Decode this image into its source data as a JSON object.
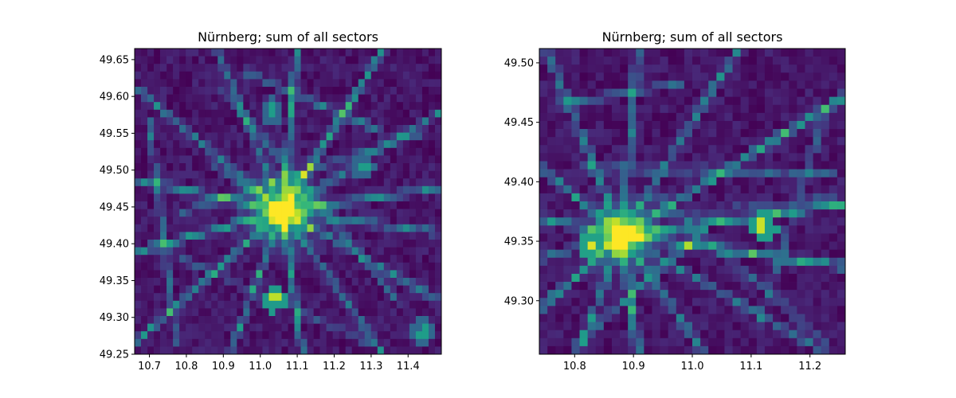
{
  "chart_data": [
    {
      "type": "heatmap",
      "title": "Nürnberg; sum of all sectors",
      "xlabel": "",
      "ylabel": "",
      "xlim": [
        10.66,
        11.49
      ],
      "ylim": [
        49.25,
        49.665
      ],
      "x_ticks": [
        "10.7",
        "10.8",
        "10.9",
        "11.0",
        "11.1",
        "11.2",
        "11.3",
        "11.4"
      ],
      "y_ticks": [
        "49.25",
        "49.30",
        "49.35",
        "49.40",
        "49.45",
        "49.50",
        "49.55",
        "49.60",
        "49.65"
      ],
      "colormap": "viridis",
      "grid": false,
      "cells": [
        48,
        40
      ],
      "hotspots": [
        {
          "x": 11.06,
          "y": 49.445,
          "value": 1.0
        },
        {
          "x": 11.04,
          "y": 49.455,
          "value": 0.92
        },
        {
          "x": 11.08,
          "y": 49.47,
          "value": 0.85
        },
        {
          "x": 11.04,
          "y": 49.325,
          "value": 0.9
        },
        {
          "x": 11.03,
          "y": 49.58,
          "value": 0.55
        },
        {
          "x": 11.28,
          "y": 49.505,
          "value": 0.55
        },
        {
          "x": 11.44,
          "y": 49.28,
          "value": 0.55
        }
      ]
    },
    {
      "type": "heatmap",
      "title": "Nürnberg; sum of all sectors",
      "xlabel": "",
      "ylabel": "",
      "xlim": [
        10.74,
        11.26
      ],
      "ylim": [
        49.255,
        49.512
      ],
      "x_ticks": [
        "10.8",
        "10.9",
        "11.0",
        "11.1",
        "11.2"
      ],
      "y_ticks": [
        "49.30",
        "49.35",
        "49.40",
        "49.45",
        "49.50"
      ],
      "colormap": "viridis",
      "grid": false,
      "cells": [
        38,
        38
      ],
      "hotspots": [
        {
          "x": 10.88,
          "y": 49.355,
          "value": 1.0
        },
        {
          "x": 10.83,
          "y": 49.347,
          "value": 0.95
        },
        {
          "x": 11.12,
          "y": 49.363,
          "value": 0.92
        },
        {
          "x": 10.9,
          "y": 49.357,
          "value": 0.85
        }
      ]
    }
  ]
}
